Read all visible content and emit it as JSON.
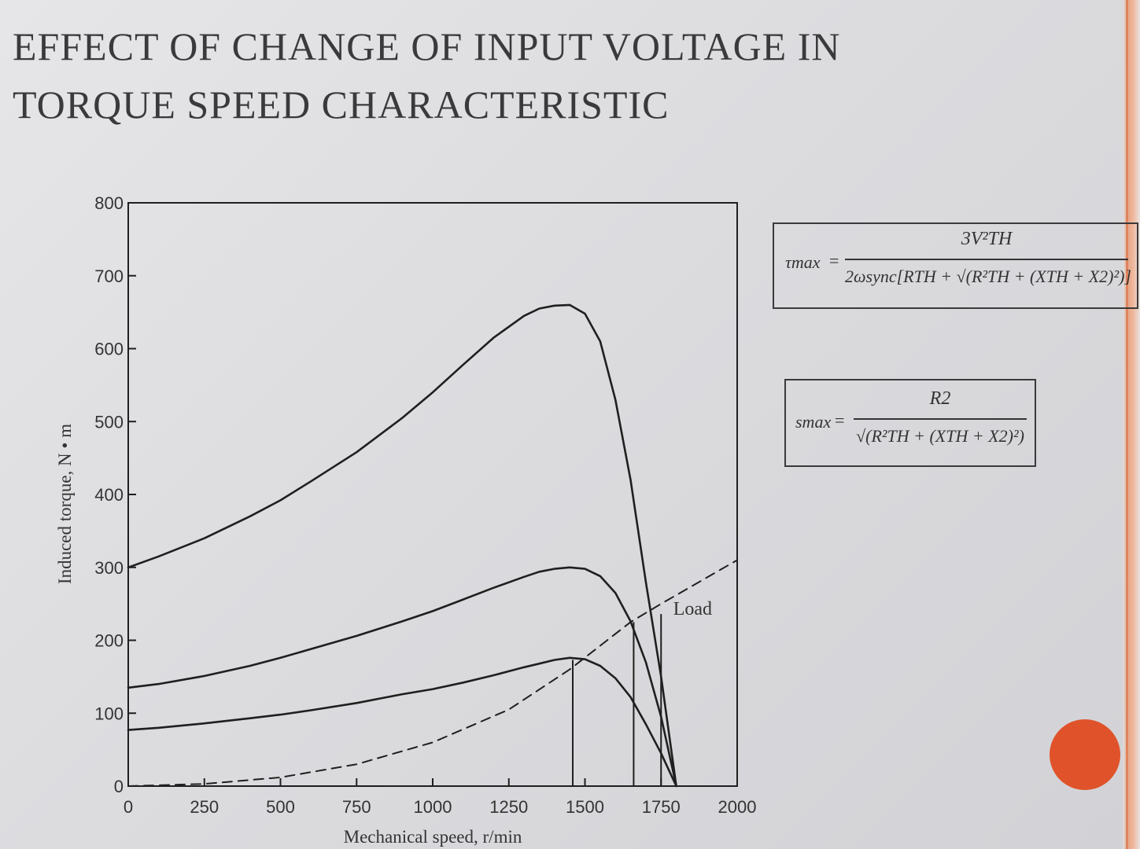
{
  "slide": {
    "title_line1": "Effect of change of input voltage in",
    "title_line2": "torque speed characteristic"
  },
  "formulas": {
    "tmax": {
      "lhs": "τmax",
      "numerator": "3V²TH",
      "denominator": "2ωsync[RTH + √(R²TH + (XTH + X2)²)]"
    },
    "smax": {
      "lhs": "smax",
      "numerator": "R2",
      "denominator": "√(R²TH + (XTH + X2)²)"
    }
  },
  "colors": {
    "curve": "#1f1f1f",
    "accent_orange": "#e0532a",
    "accent_bar": "#e7a98c"
  },
  "chart_data": {
    "type": "line",
    "xlabel": "Mechanical speed, r/min",
    "ylabel": "Induced torque, N • m",
    "xlim": [
      0,
      2000
    ],
    "ylim": [
      0,
      800
    ],
    "xticks": [
      0,
      250,
      500,
      750,
      1000,
      1250,
      1500,
      1750,
      2000
    ],
    "yticks": [
      0,
      100,
      200,
      300,
      400,
      500,
      600,
      700,
      800
    ],
    "grid": false,
    "annotations": [
      {
        "text": "Load",
        "x": 1790,
        "y": 235
      }
    ],
    "series": [
      {
        "style": "solid",
        "x": [
          0,
          100,
          250,
          400,
          500,
          600,
          750,
          900,
          1000,
          1100,
          1200,
          1300,
          1350,
          1400,
          1450,
          1500,
          1550,
          1600,
          1650,
          1700,
          1750,
          1800
        ],
        "y": [
          300,
          315,
          340,
          370,
          392,
          418,
          458,
          505,
          540,
          578,
          615,
          645,
          655,
          659,
          660,
          648,
          610,
          530,
          420,
          280,
          150,
          0
        ]
      },
      {
        "style": "solid",
        "x": [
          0,
          100,
          250,
          400,
          500,
          600,
          750,
          900,
          1000,
          1100,
          1200,
          1300,
          1350,
          1400,
          1450,
          1500,
          1550,
          1600,
          1650,
          1700,
          1750,
          1800
        ],
        "y": [
          135,
          140,
          151,
          165,
          176,
          188,
          206,
          226,
          240,
          256,
          272,
          287,
          294,
          298,
          300,
          298,
          288,
          265,
          226,
          170,
          95,
          0
        ]
      },
      {
        "style": "solid",
        "x": [
          0,
          100,
          250,
          400,
          500,
          600,
          750,
          900,
          1000,
          1100,
          1200,
          1300,
          1350,
          1400,
          1450,
          1500,
          1550,
          1600,
          1650,
          1700,
          1750,
          1800
        ],
        "y": [
          77,
          80,
          86,
          93,
          98,
          104,
          114,
          126,
          133,
          142,
          152,
          163,
          168,
          173,
          176,
          174,
          165,
          148,
          122,
          85,
          45,
          0
        ]
      },
      {
        "name": "Load",
        "style": "dashed",
        "x": [
          0,
          250,
          500,
          750,
          1000,
          1250,
          1450,
          1650,
          1750,
          2000
        ],
        "y": [
          0,
          3,
          12,
          30,
          60,
          105,
          160,
          225,
          250,
          310
        ]
      }
    ],
    "operating_points": [
      {
        "x": 1460,
        "y": 173
      },
      {
        "x": 1660,
        "y": 225
      },
      {
        "x": 1750,
        "y": 236
      }
    ]
  }
}
